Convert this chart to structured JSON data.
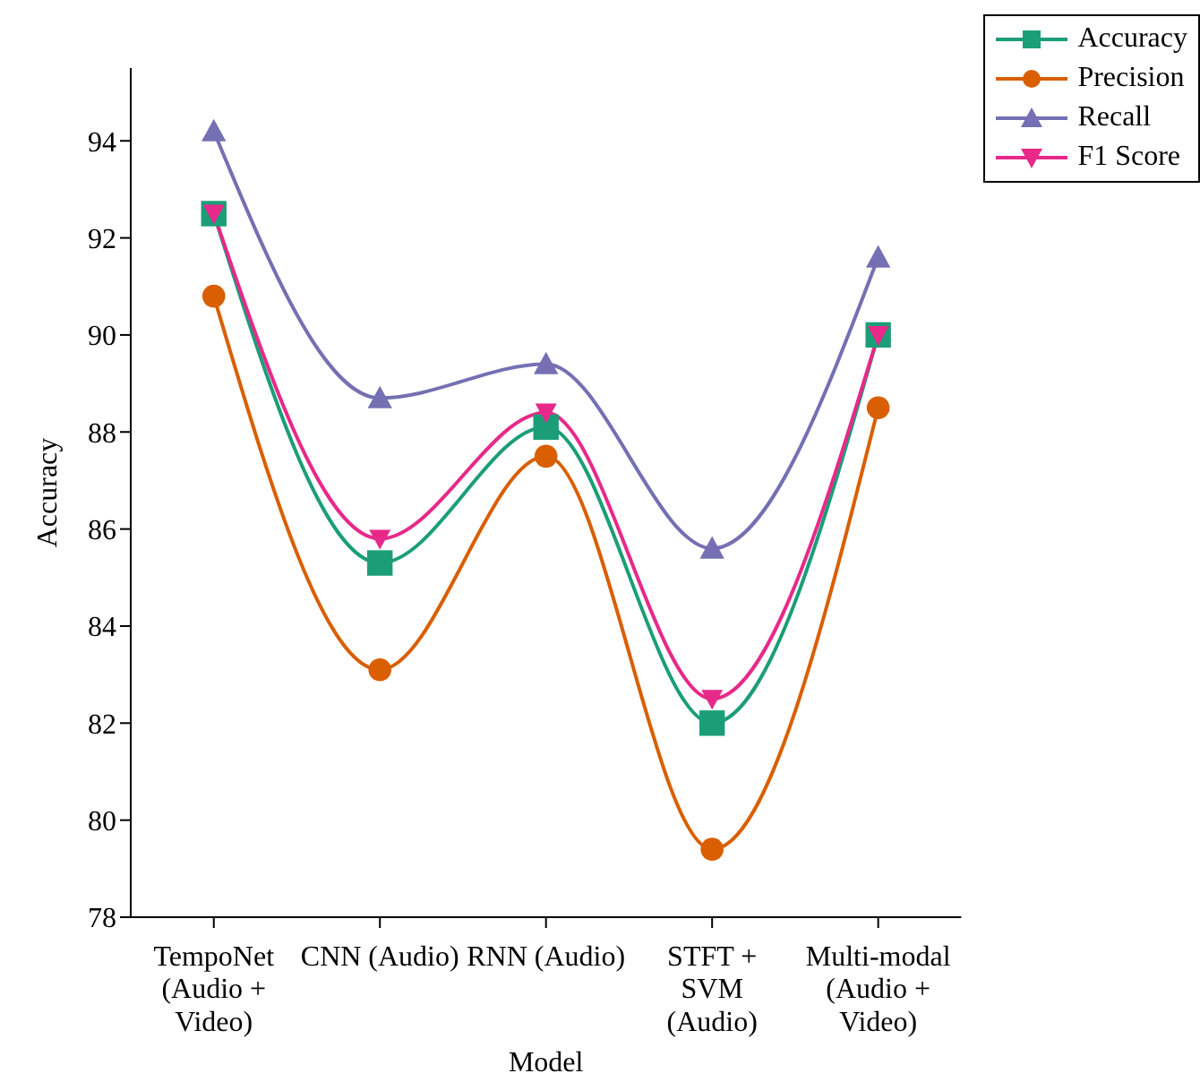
{
  "chart_data": {
    "type": "line",
    "xlabel": "Model",
    "ylabel": "Accuracy",
    "categories": [
      "TempoNet\n(Audio +\nVideo)",
      "CNN (Audio)",
      "RNN (Audio)",
      "STFT +\nSVM\n(Audio)",
      "Multi-modal\n(Audio +\nVideo)"
    ],
    "series": [
      {
        "name": "Accuracy",
        "color": "#1b9e77",
        "marker": "square",
        "values": [
          92.5,
          85.3,
          88.1,
          82.0,
          90.0
        ]
      },
      {
        "name": "Precision",
        "color": "#d95f02",
        "marker": "circle",
        "values": [
          90.8,
          83.1,
          87.5,
          79.4,
          88.5
        ]
      },
      {
        "name": "Recall",
        "color": "#7570b3",
        "marker": "triangle",
        "values": [
          94.2,
          88.7,
          89.4,
          85.6,
          91.6
        ]
      },
      {
        "name": "F1 Score",
        "color": "#e7298a",
        "marker": "triangle-down",
        "values": [
          92.5,
          85.8,
          88.4,
          82.5,
          90.0
        ]
      }
    ],
    "ylim": [
      78,
      95.5
    ],
    "yticks": [
      78,
      80,
      82,
      84,
      86,
      88,
      90,
      92,
      94
    ],
    "grid": false,
    "legend": "top right",
    "line_style": "solid"
  }
}
